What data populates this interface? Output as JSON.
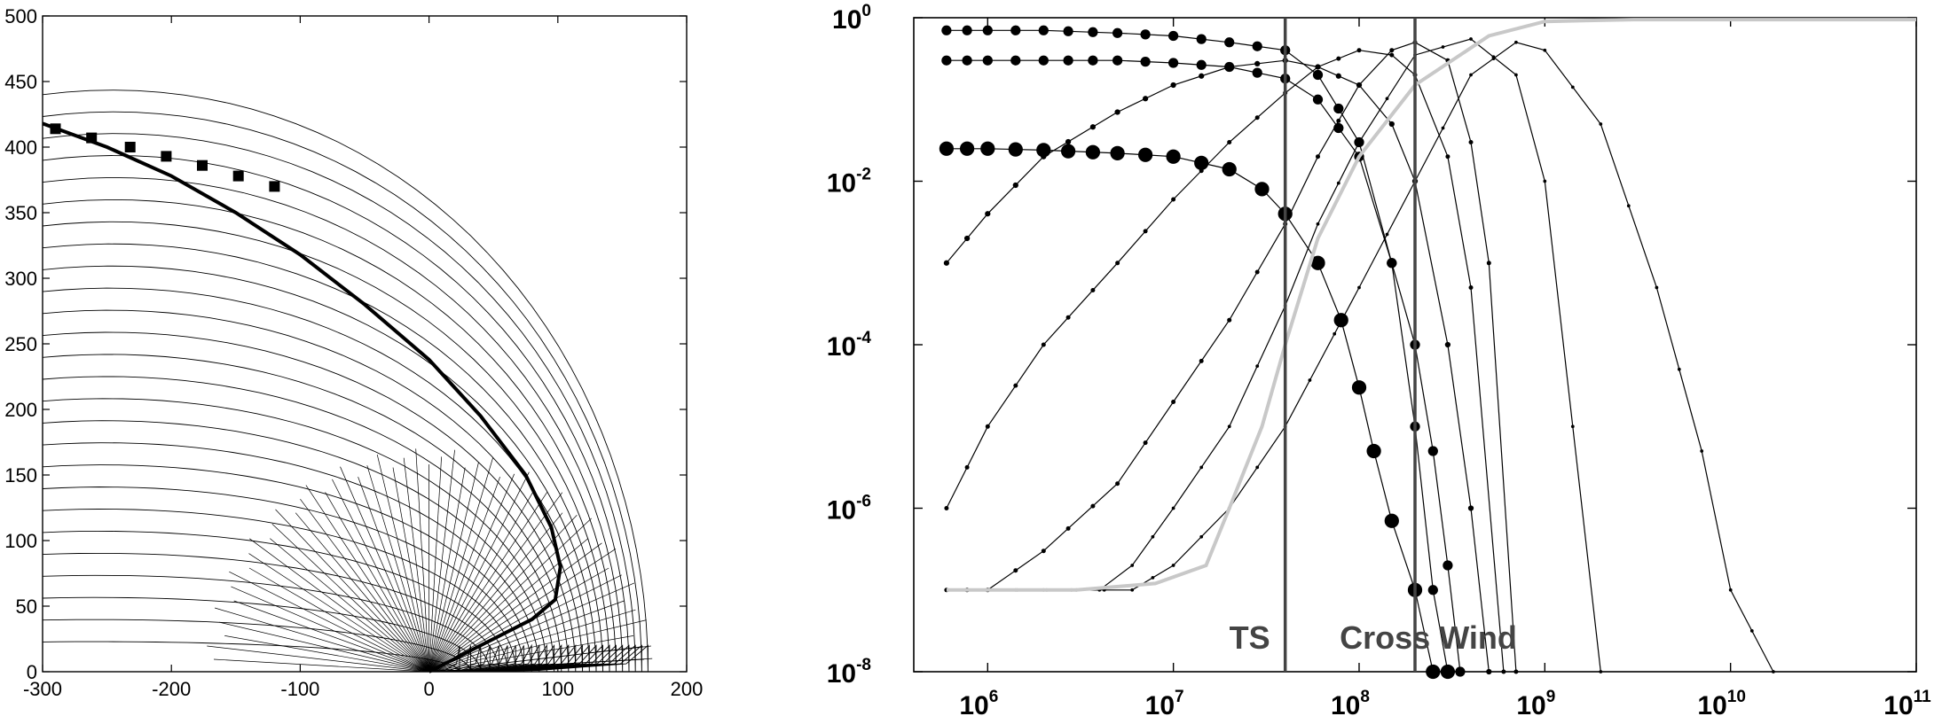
{
  "chart_data": [
    {
      "type": "line",
      "title": "",
      "xlabel": "",
      "ylabel": "",
      "xlim": [
        -300,
        200
      ],
      "ylim": [
        0,
        500
      ],
      "xticks": [
        "-300",
        "-200",
        "-100",
        "0",
        "100",
        "200"
      ],
      "yticks": [
        "0",
        "50",
        "100",
        "150",
        "200",
        "250",
        "300",
        "350",
        "400",
        "450",
        "500"
      ],
      "grid": false,
      "description_series": {
        "envelope_curves": {
          "outer_x_right": [
            10,
            25,
            40,
            55,
            72,
            88,
            100,
            115,
            130,
            145,
            160,
            170
          ],
          "y_left_start": [
            5,
            15,
            28,
            45,
            65,
            90,
            120,
            140,
            160,
            180,
            200,
            215,
            235,
            255,
            275,
            295,
            315,
            335,
            355,
            375,
            395,
            410,
            425,
            435,
            440
          ]
        },
        "radial_rays_angles_deg": [
          -90,
          -80,
          -70,
          -60,
          -50,
          -40,
          -30,
          -20,
          -10,
          0,
          10,
          20,
          30,
          40,
          50,
          60,
          70,
          80,
          90
        ]
      },
      "highlight": {
        "name": "",
        "x": [
          -300,
          -250,
          -200,
          -150,
          -100,
          -50,
          0,
          40,
          75,
          95,
          102,
          98,
          80,
          40,
          0
        ],
        "y": [
          418,
          400,
          378,
          350,
          318,
          280,
          238,
          195,
          150,
          110,
          80,
          55,
          40,
          20,
          0
        ]
      },
      "markers": {
        "x": [
          -290,
          -262,
          -232,
          -204,
          -176,
          -148,
          -120
        ],
        "y": [
          414,
          407,
          400,
          393,
          386,
          378,
          370
        ]
      }
    },
    {
      "type": "line",
      "title": "",
      "xlabel": "",
      "ylabel": "",
      "xscale": "log",
      "yscale": "log",
      "xlim": [
        400000,
        100000000000
      ],
      "ylim": [
        1e-08,
        1
      ],
      "xticks": [
        {
          "base": "10",
          "exp": "6"
        },
        {
          "base": "10",
          "exp": "7"
        },
        {
          "base": "10",
          "exp": "8"
        },
        {
          "base": "10",
          "exp": "9"
        },
        {
          "base": "10",
          "exp": "10"
        },
        {
          "base": "10",
          "exp": "11"
        }
      ],
      "yticks": [
        {
          "base": "10",
          "exp": "0"
        },
        {
          "base": "10",
          "exp": "-2"
        },
        {
          "base": "10",
          "exp": "-4"
        },
        {
          "base": "10",
          "exp": "-6"
        },
        {
          "base": "10",
          "exp": "-8"
        }
      ],
      "grid": false,
      "vlines": [
        {
          "x": 40000000,
          "label": "TS"
        },
        {
          "x": 200000000,
          "label": "Cross Wind"
        }
      ],
      "series": [
        {
          "marker_size": 9,
          "x": [
            600000,
            1000000,
            2000000,
            5000000,
            10000000,
            20000000,
            40000000,
            60000000,
            100000000,
            150000000,
            200000000,
            250000000,
            300000000
          ],
          "y": [
            0.7,
            0.7,
            0.7,
            0.65,
            0.6,
            0.5,
            0.4,
            0.2,
            0.03,
            0.001,
            1e-05,
            1e-07,
            1e-08
          ]
        },
        {
          "marker_size": 9,
          "x": [
            600000,
            1000000,
            2000000,
            5000000,
            10000000,
            20000000,
            40000000,
            60000000,
            100000000,
            150000000,
            200000000,
            250000000,
            300000000,
            350000000
          ],
          "y": [
            0.3,
            0.3,
            0.3,
            0.3,
            0.28,
            0.25,
            0.18,
            0.1,
            0.02,
            0.001,
            0.0001,
            5e-06,
            2e-07,
            1e-08
          ]
        },
        {
          "marker_size": 13,
          "x": [
            600000,
            1000000,
            2000000,
            5000000,
            10000000,
            20000000,
            30000000,
            40000000,
            60000000,
            80000000,
            100000000,
            120000000,
            150000000,
            200000000,
            250000000,
            300000000
          ],
          "y": [
            0.025,
            0.025,
            0.024,
            0.022,
            0.02,
            0.014,
            0.008,
            0.004,
            0.001,
            0.0002,
            3e-05,
            5e-06,
            7e-07,
            1e-07,
            1e-08,
            1e-08
          ]
        },
        {
          "marker_size": 5,
          "x": [
            600000,
            1000000,
            2000000,
            5000000,
            10000000,
            20000000,
            40000000,
            60000000,
            100000000,
            150000000,
            200000000,
            300000000,
            400000000,
            500000000
          ],
          "y": [
            0.001,
            0.004,
            0.02,
            0.07,
            0.15,
            0.25,
            0.3,
            0.25,
            0.15,
            0.05,
            0.01,
            0.0001,
            1e-06,
            1e-08
          ]
        },
        {
          "marker_size": 4,
          "x": [
            600000,
            1000000,
            2000000,
            5000000,
            10000000,
            20000000,
            40000000,
            60000000,
            100000000,
            150000000,
            200000000,
            300000000,
            400000000,
            600000000
          ],
          "y": [
            1e-06,
            1e-05,
            0.0001,
            0.001,
            0.006,
            0.03,
            0.12,
            0.25,
            0.4,
            0.35,
            0.2,
            0.02,
            0.0005,
            1e-08
          ]
        },
        {
          "marker_size": 4,
          "x": [
            600000,
            1000000,
            2000000,
            5000000,
            10000000,
            20000000,
            40000000,
            60000000,
            100000000,
            150000000,
            200000000,
            300000000,
            400000000,
            500000000,
            700000000
          ],
          "y": [
            1e-07,
            1e-07,
            3e-07,
            2e-06,
            2e-05,
            0.0002,
            0.003,
            0.02,
            0.15,
            0.4,
            0.5,
            0.3,
            0.03,
            0.001,
            1e-08
          ]
        },
        {
          "marker_size": 3,
          "x": [
            600000,
            1000000,
            2000000,
            4000000,
            6000000,
            10000000,
            20000000,
            40000000,
            60000000,
            100000000,
            200000000,
            400000000,
            700000000,
            1000000000,
            2000000000
          ],
          "y": [
            1e-07,
            1e-07,
            1e-07,
            1e-07,
            2e-07,
            1e-06,
            1e-05,
            0.0003,
            0.003,
            0.03,
            0.35,
            0.55,
            0.2,
            0.01,
            1e-08
          ]
        },
        {
          "marker_size": 3,
          "x": [
            600000,
            1000000,
            3000000,
            6000000,
            10000000,
            20000000,
            40000000,
            100000000,
            200000000,
            400000000,
            700000000,
            1000000000,
            2000000000,
            4000000000,
            7000000000,
            10000000000,
            17000000000
          ],
          "y": [
            1e-07,
            1e-07,
            1e-07,
            1e-07,
            2e-07,
            1e-06,
            1e-05,
            0.0005,
            0.01,
            0.2,
            0.5,
            0.4,
            0.05,
            0.0005,
            5e-06,
            1e-07,
            1e-08
          ]
        },
        {
          "marker_size": 0,
          "color": "#c8c8c8",
          "x": [
            600000,
            1000000,
            3000000,
            8000000,
            15000000,
            20000000,
            30000000,
            40000000,
            60000000,
            100000000,
            200000000,
            500000000,
            1000000000,
            3000000000,
            10000000000,
            100000000000
          ],
          "y": [
            1e-07,
            1e-07,
            1e-07,
            1.2e-07,
            2e-07,
            1e-06,
            1e-05,
            0.0001,
            0.002,
            0.02,
            0.15,
            0.6,
            0.9,
            0.95,
            0.95,
            0.95
          ]
        }
      ]
    }
  ]
}
